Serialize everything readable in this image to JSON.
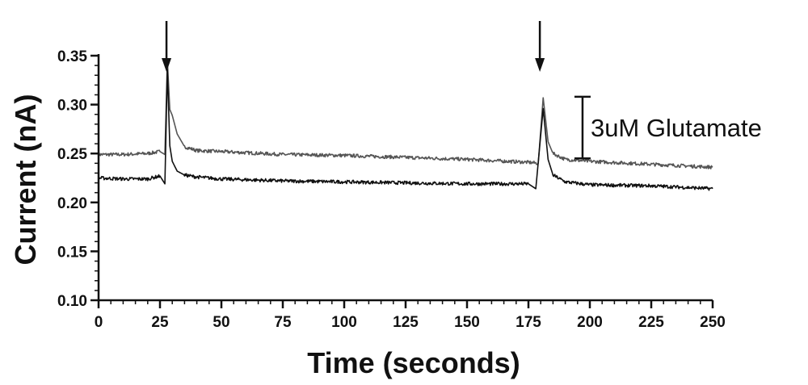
{
  "chart_data": {
    "type": "line",
    "title": "",
    "xlabel": "Time (seconds)",
    "ylabel": "Current (nA)",
    "xlim": [
      0,
      250
    ],
    "ylim": [
      0.1,
      0.35
    ],
    "x_ticks": [
      0,
      25,
      50,
      75,
      100,
      125,
      150,
      175,
      200,
      225,
      250
    ],
    "y_ticks": [
      0.1,
      0.15,
      0.2,
      0.25,
      0.3,
      0.35
    ],
    "y_tick_labels": [
      "0.10",
      "0.15",
      "0.20",
      "0.25",
      "0.30",
      "0.35"
    ],
    "grid": false,
    "legend": "none",
    "series": [
      {
        "color": "#555555",
        "points": [
          [
            0,
            0.249
          ],
          [
            10,
            0.249
          ],
          [
            20,
            0.25
          ],
          [
            25,
            0.252
          ],
          [
            27,
            0.249
          ],
          [
            28,
            0.346
          ],
          [
            29,
            0.295
          ],
          [
            30,
            0.289
          ],
          [
            32,
            0.27
          ],
          [
            35,
            0.257
          ],
          [
            40,
            0.253
          ],
          [
            50,
            0.252
          ],
          [
            75,
            0.249
          ],
          [
            100,
            0.248
          ],
          [
            125,
            0.246
          ],
          [
            150,
            0.244
          ],
          [
            175,
            0.241
          ],
          [
            179,
            0.24
          ],
          [
            181,
            0.307
          ],
          [
            183,
            0.262
          ],
          [
            185,
            0.25
          ],
          [
            190,
            0.244
          ],
          [
            200,
            0.242
          ],
          [
            225,
            0.239
          ],
          [
            250,
            0.236
          ]
        ]
      },
      {
        "color": "#111111",
        "points": [
          [
            0,
            0.225
          ],
          [
            10,
            0.224
          ],
          [
            20,
            0.224
          ],
          [
            25,
            0.227
          ],
          [
            27,
            0.219
          ],
          [
            28,
            0.336
          ],
          [
            29,
            0.258
          ],
          [
            30,
            0.242
          ],
          [
            32,
            0.232
          ],
          [
            35,
            0.228
          ],
          [
            40,
            0.226
          ],
          [
            50,
            0.224
          ],
          [
            75,
            0.222
          ],
          [
            100,
            0.221
          ],
          [
            125,
            0.22
          ],
          [
            150,
            0.219
          ],
          [
            175,
            0.219
          ],
          [
            178,
            0.214
          ],
          [
            181,
            0.296
          ],
          [
            183,
            0.244
          ],
          [
            185,
            0.228
          ],
          [
            190,
            0.221
          ],
          [
            200,
            0.218
          ],
          [
            225,
            0.217
          ],
          [
            250,
            0.214
          ]
        ]
      }
    ],
    "stimulus_arrows_x": [
      26,
      178
    ],
    "annotations": [
      {
        "text": "3uM Glutamate",
        "scale_bar_y": [
          0.245,
          0.308
        ],
        "x": 199
      }
    ]
  }
}
